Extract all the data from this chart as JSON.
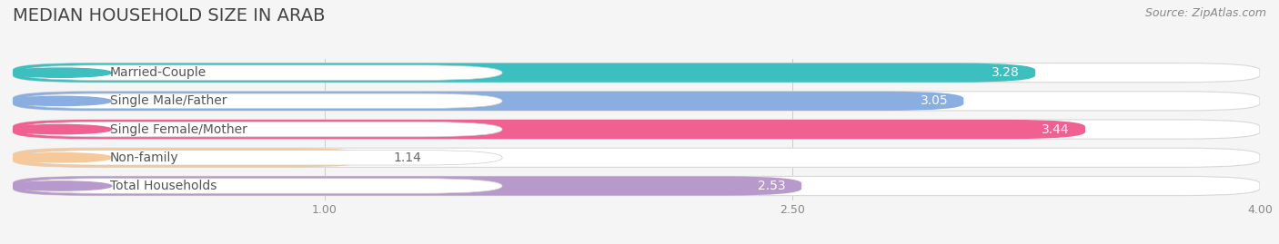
{
  "title": "MEDIAN HOUSEHOLD SIZE IN ARAB",
  "source": "Source: ZipAtlas.com",
  "categories": [
    "Married-Couple",
    "Single Male/Father",
    "Single Female/Mother",
    "Non-family",
    "Total Households"
  ],
  "values": [
    3.28,
    3.05,
    3.44,
    1.14,
    2.53
  ],
  "bar_colors": [
    "#3dbfbf",
    "#8aaee0",
    "#f06090",
    "#f5c99a",
    "#b899cc"
  ],
  "bar_bg_colors": [
    "#f0f0f2",
    "#f0f0f2",
    "#f0f0f2",
    "#f0f0f2",
    "#f0f0f2"
  ],
  "dot_colors": [
    "#3dbfbf",
    "#8aaee0",
    "#f06090",
    "#f5c99a",
    "#b899cc"
  ],
  "xmin": 0.0,
  "xmax": 4.0,
  "xstart": 0.0,
  "xticks": [
    1.0,
    2.5,
    4.0
  ],
  "value_color_inside": "#ffffff",
  "value_color_outside": "#666666",
  "label_color": "#555555",
  "title_fontsize": 14,
  "source_fontsize": 9,
  "label_fontsize": 10,
  "value_fontsize": 10,
  "tick_fontsize": 9,
  "background_color": "#f5f5f5",
  "bar_height": 0.68,
  "bar_gap": 0.32
}
